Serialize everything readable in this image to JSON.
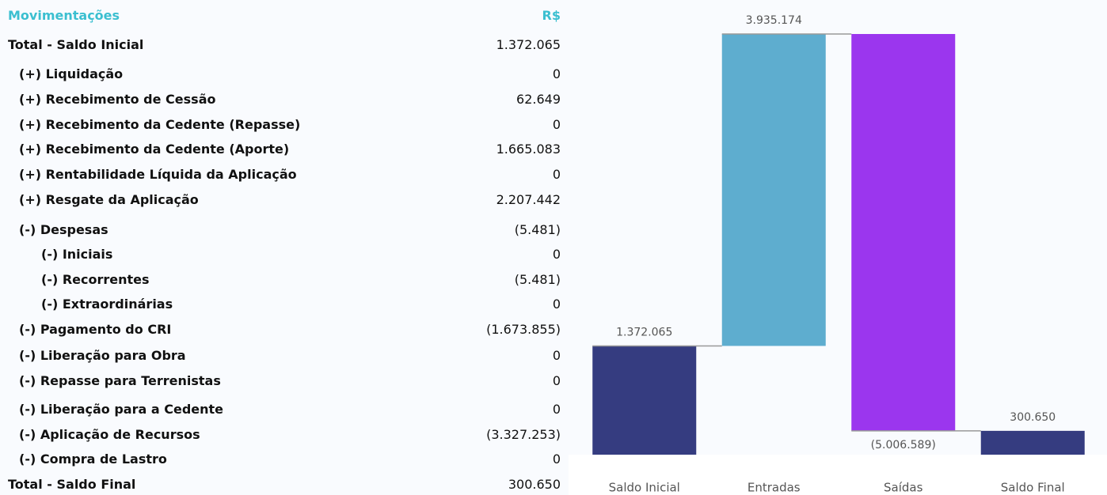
{
  "table": {
    "header": [
      "Movimentações",
      "R$"
    ],
    "rows": [
      [
        "Total - Saldo Inicial",
        "1.372.065"
      ],
      [
        "(+) Liquidação",
        "0"
      ],
      [
        "(+) Recebimento de Cessão",
        "62.649"
      ],
      [
        "(+) Recebimento da Cedente (Repasse)",
        "0"
      ],
      [
        "(+) Recebimento da Cedente (Aporte)",
        "1.665.083"
      ],
      [
        "(+) Rentabilidade Líquida da Aplicação",
        "0"
      ],
      [
        "(+) Resgate da Aplicação",
        "2.207.442"
      ],
      [
        "(-) Despesas",
        "(5.481)"
      ],
      [
        "(-) Iniciais",
        "0"
      ],
      [
        "(-) Recorrentes",
        "(5.481)"
      ],
      [
        "(-) Extraordinárias",
        "0"
      ],
      [
        "(-) Pagamento do CRI",
        "(1.673.855)"
      ],
      [
        "(-) Liberação para Obra",
        "0"
      ],
      [
        "(-) Repasse para Terrenistas",
        "0"
      ],
      [
        "(-) Liberação para a Cedente",
        "0"
      ],
      [
        "(-) Aplicação de Recursos",
        "(3.327.253)"
      ],
      [
        "(-) Compra de Lastro",
        "0"
      ],
      [
        "Total - Saldo Final",
        "300.650"
      ]
    ]
  },
  "chart_data": {
    "type": "waterfall",
    "categories": [
      "Saldo Inicial",
      "Entradas",
      "Saídas",
      "Saldo Final"
    ],
    "values": [
      1372065,
      3935174,
      -5006589,
      300650
    ],
    "value_labels": [
      "1.372.065",
      "3.935.174",
      "(5.006.589)",
      "300.650"
    ],
    "colors": [
      "#353c80",
      "#5eadcf",
      "#9b36ee",
      "#353c80"
    ]
  }
}
